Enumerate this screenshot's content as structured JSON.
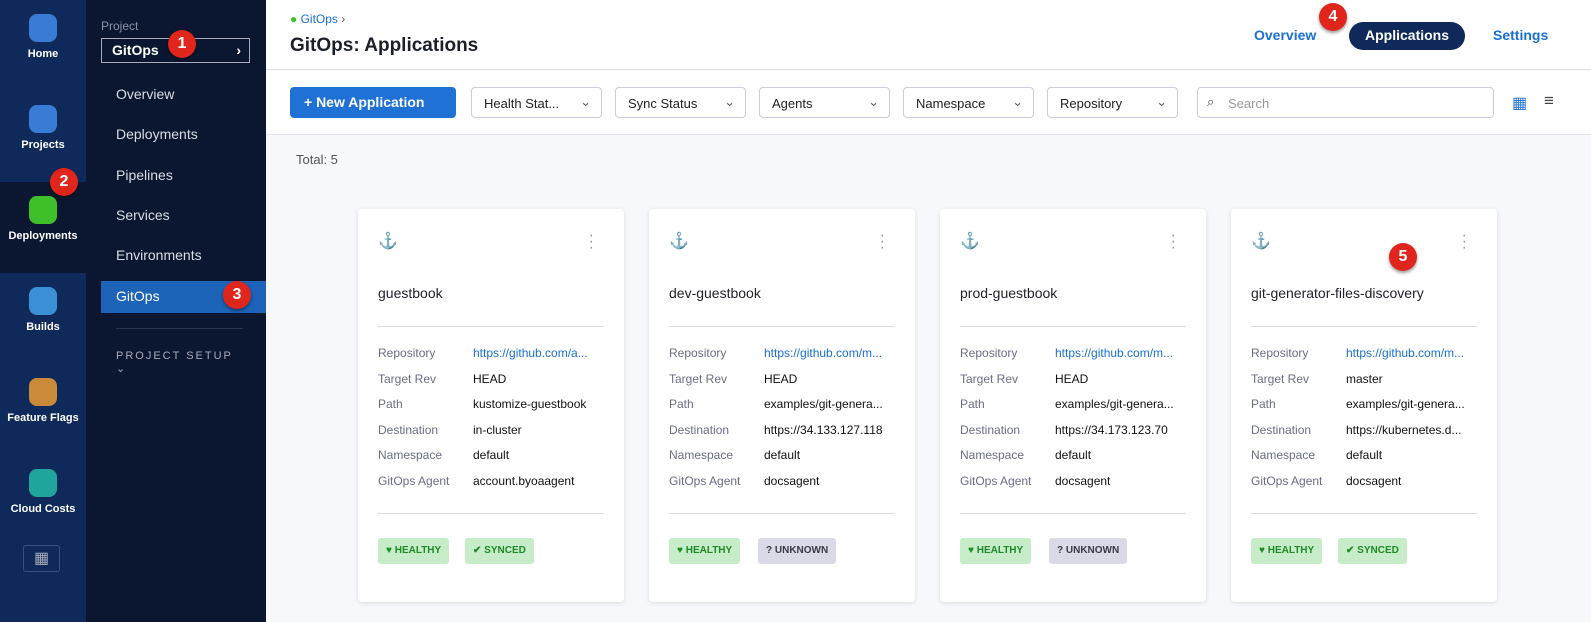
{
  "left_nav": [
    {
      "label": "Home",
      "color": "#3a7bd5"
    },
    {
      "label": "Projects",
      "color": "#3a7bd5"
    },
    {
      "label": "Deployments",
      "color": "#3fbf2a"
    },
    {
      "label": "Builds",
      "color": "#3a8fd5"
    },
    {
      "label": "Feature Flags",
      "color": "#c98a3a"
    },
    {
      "label": "Cloud Costs",
      "color": "#1fa59c"
    }
  ],
  "project": {
    "label": "Project",
    "value": "GitOps"
  },
  "project_nav": [
    "Overview",
    "Deployments",
    "Pipelines",
    "Services",
    "Environments",
    "GitOps"
  ],
  "project_setup": "PROJECT SETUP",
  "annotations": [
    "1",
    "2",
    "3",
    "4",
    "5"
  ],
  "header": {
    "breadcrumb": "GitOps",
    "title": "GitOps: Applications",
    "tabs": [
      "Overview",
      "Applications",
      "Settings"
    ]
  },
  "toolbar": {
    "new_label": "+ New Application",
    "filters": [
      "Health Stat...",
      "Sync Status",
      "Agents",
      "Namespace",
      "Repository"
    ],
    "search_placeholder": "Search"
  },
  "total": "Total: 5",
  "field_labels": [
    "Repository",
    "Target Rev",
    "Path",
    "Destination",
    "Namespace",
    "GitOps Agent"
  ],
  "cards": [
    {
      "name": "guestbook",
      "values": [
        "https://github.com/a...",
        "HEAD",
        "kustomize-guestbook",
        "in-cluster",
        "default",
        "account.byoaagent"
      ],
      "health": "HEALTHY",
      "sync": "SYNCED",
      "sync_type": "g"
    },
    {
      "name": "dev-guestbook",
      "values": [
        "https://github.com/m...",
        "HEAD",
        "examples/git-genera...",
        "https://34.133.127.118",
        "default",
        "docsagent"
      ],
      "health": "HEALTHY",
      "sync": "UNKNOWN",
      "sync_type": "u"
    },
    {
      "name": "prod-guestbook",
      "values": [
        "https://github.com/m...",
        "HEAD",
        "examples/git-genera...",
        "https://34.173.123.70",
        "default",
        "docsagent"
      ],
      "health": "HEALTHY",
      "sync": "UNKNOWN",
      "sync_type": "u"
    },
    {
      "name": "git-generator-files-discovery",
      "values": [
        "https://github.com/m...",
        "master",
        "examples/git-genera...",
        "https://kubernetes.d...",
        "default",
        "docsagent"
      ],
      "health": "HEALTHY",
      "sync": "SYNCED",
      "sync_type": "g"
    }
  ]
}
